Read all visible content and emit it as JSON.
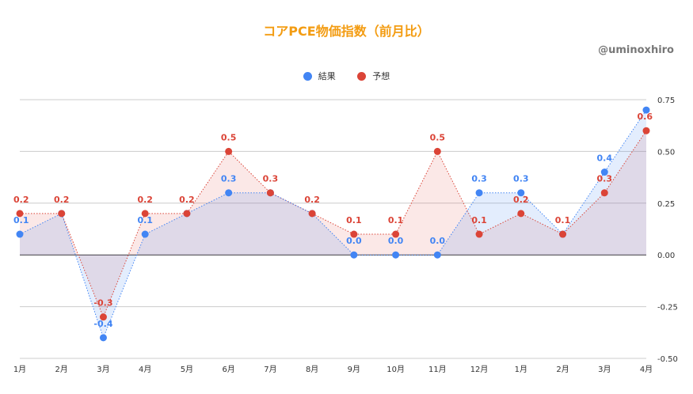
{
  "chart_data": {
    "type": "line",
    "title": "コアPCE物価指数（前月比）",
    "watermark": "@uminoxhiro",
    "categories": [
      "1月",
      "2月",
      "3月",
      "4月",
      "5月",
      "6月",
      "7月",
      "8月",
      "9月",
      "10月",
      "11月",
      "12月",
      "1月",
      "2月",
      "3月",
      "4月"
    ],
    "series": [
      {
        "name": "結果",
        "color": "#4285f4",
        "values": [
          0.1,
          0.2,
          -0.4,
          0.1,
          0.2,
          0.3,
          0.3,
          0.2,
          0.0,
          0.0,
          0.0,
          0.3,
          0.3,
          0.1,
          0.4,
          0.7
        ],
        "labels": [
          "0.1",
          "",
          "-0.4",
          "0.1",
          "",
          "0.3",
          "",
          "",
          "0.0",
          "0.0",
          "0.0",
          "0.3",
          "0.3",
          "",
          "0.4",
          ""
        ]
      },
      {
        "name": "予想",
        "color": "#db4437",
        "values": [
          0.2,
          0.2,
          -0.3,
          0.2,
          0.2,
          0.5,
          0.3,
          0.2,
          0.1,
          0.1,
          0.5,
          0.1,
          0.2,
          0.1,
          0.3,
          0.6
        ],
        "labels": [
          "0.2",
          "0.2",
          "-0.3",
          "0.2",
          "0.2",
          "0.5",
          "0.3",
          "0.2",
          "0.1",
          "0.1",
          "0.5",
          "0.1",
          "0.2",
          "0.1",
          "0.3",
          "0.6"
        ]
      }
    ],
    "ylim": [
      -0.5,
      0.75
    ],
    "yticks": [
      "-0.50",
      "-0.25",
      "0.00",
      "0.25",
      "0.50",
      "0.75"
    ],
    "grid": true,
    "legend": "top-center"
  }
}
